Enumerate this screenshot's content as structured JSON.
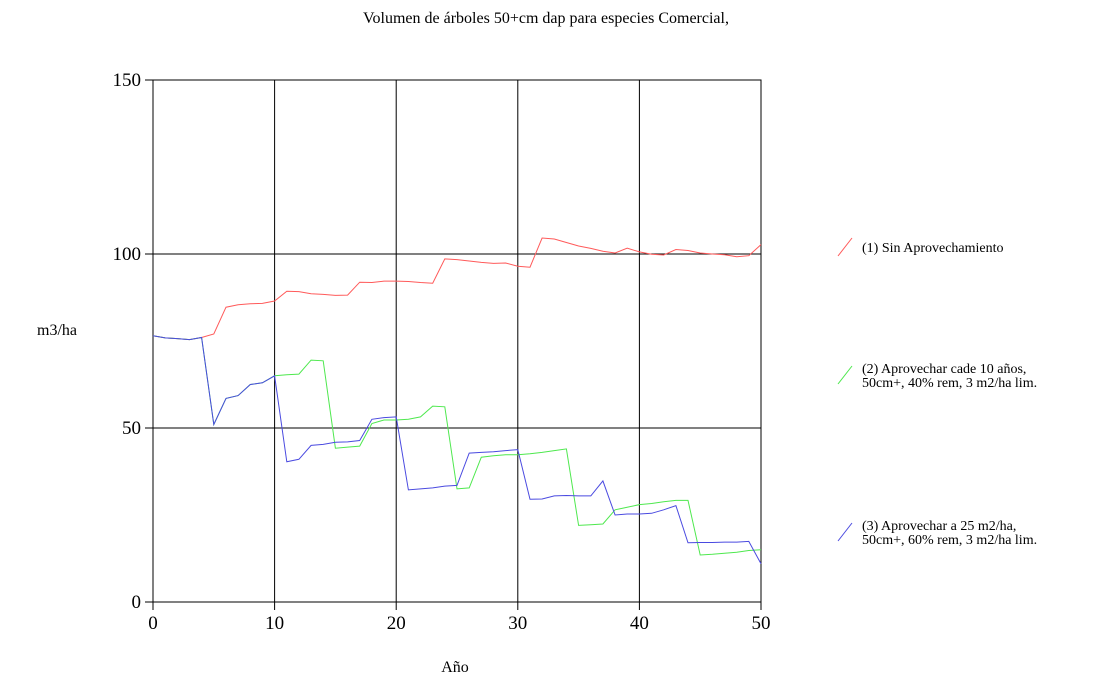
{
  "chart_data": {
    "type": "line",
    "title": "Volumen de árboles 50+cm dap para especies Comercial,",
    "xlabel": "Año",
    "ylabel": "m3/ha",
    "xlim": [
      0,
      50
    ],
    "ylim": [
      0,
      150
    ],
    "xticks": [
      "0",
      "10",
      "20",
      "30",
      "40",
      "50"
    ],
    "yticks": [
      "0",
      "50",
      "100",
      "150"
    ],
    "grid": true,
    "legend_position": "right",
    "x": [
      0,
      1,
      2,
      3,
      4,
      5,
      6,
      7,
      8,
      9,
      10,
      11,
      12,
      13,
      14,
      15,
      16,
      17,
      18,
      19,
      20,
      21,
      22,
      23,
      24,
      25,
      26,
      27,
      28,
      29,
      30,
      31,
      32,
      33,
      34,
      35,
      36,
      37,
      38,
      39,
      40,
      41,
      42,
      43,
      44,
      45,
      46,
      47,
      48,
      49,
      50
    ],
    "series": [
      {
        "name_lines": [
          "(1) Sin Aprovechamiento"
        ],
        "color": "#ff5a5a",
        "values": [
          76.5,
          75.9,
          75.7,
          75.4,
          76.0,
          77.0,
          84.7,
          85.4,
          85.7,
          85.8,
          86.5,
          89.3,
          89.2,
          88.6,
          88.4,
          88.1,
          88.2,
          91.9,
          91.8,
          92.2,
          92.2,
          92.1,
          91.8,
          91.6,
          98.6,
          98.4,
          98.0,
          97.6,
          97.3,
          97.4,
          96.5,
          96.2,
          104.6,
          104.3,
          103.3,
          102.3,
          101.6,
          100.8,
          100.3,
          101.7,
          100.6,
          99.9,
          99.7,
          101.3,
          101.0,
          100.3,
          100.0,
          99.8,
          99.2,
          99.5,
          102.7
        ]
      },
      {
        "name_lines": [
          "(2) Aprovechar cade 10 años,",
          "50cm+, 40% rem, 3 m2/ha lim."
        ],
        "color": "#4ee84e",
        "values": [
          76.5,
          75.9,
          75.7,
          75.4,
          76.0,
          51.0,
          58.5,
          59.3,
          62.5,
          63.0,
          65.0,
          65.3,
          65.5,
          69.5,
          69.3,
          44.2,
          44.5,
          44.8,
          51.3,
          52.3,
          52.3,
          52.5,
          53.2,
          56.3,
          56.1,
          32.5,
          32.8,
          41.6,
          42.0,
          42.3,
          42.3,
          42.6,
          43.0,
          43.5,
          44.0,
          22.0,
          22.2,
          22.4,
          26.5,
          27.2,
          28.0,
          28.3,
          28.8,
          29.2,
          29.2,
          13.5,
          13.7,
          14.0,
          14.3,
          14.8,
          15.0
        ]
      },
      {
        "name_lines": [
          "(3) Aprovechar a 25 m2/ha,",
          "50cm+, 60% rem, 3 m2/ha lim."
        ],
        "color": "#4a4ae0",
        "values": [
          76.5,
          75.9,
          75.7,
          75.4,
          76.0,
          51.0,
          58.5,
          59.3,
          62.5,
          63.0,
          65.0,
          40.3,
          41.0,
          45.0,
          45.3,
          45.9,
          46.0,
          46.4,
          52.5,
          53.0,
          53.2,
          32.2,
          32.5,
          32.8,
          33.3,
          33.5,
          42.8,
          43.0,
          43.2,
          43.5,
          43.8,
          29.5,
          29.6,
          30.5,
          30.6,
          30.5,
          30.5,
          34.8,
          25.0,
          25.3,
          25.3,
          25.5,
          26.5,
          27.7,
          17.0,
          17.1,
          17.1,
          17.2,
          17.2,
          17.4,
          11.0
        ]
      }
    ]
  }
}
